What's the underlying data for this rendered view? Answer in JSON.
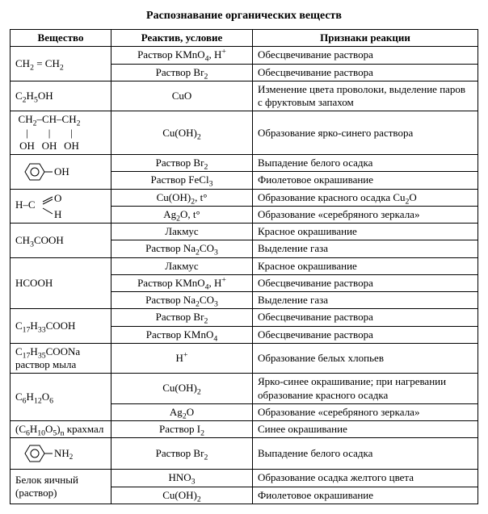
{
  "title": "Распознавание органических веществ",
  "headers": {
    "c1": "Вещество",
    "c2": "Реактив, условие",
    "c3": "Признаки реакции"
  },
  "rows": [
    {
      "sub": "CH₂ = CH₂",
      "span": 2,
      "cells": [
        {
          "reag": "Раствор KMnO₄, H⁺",
          "sign": "Обесцвечивание раствора"
        },
        {
          "reag": "Раствор Br₂",
          "sign": "Обесцвечивание раствора"
        }
      ]
    },
    {
      "sub": "C₂H₅OH",
      "span": 1,
      "cells": [
        {
          "reag": "CuO",
          "sign": "Изменение цвета проволоки, выделение паров с фруктовым запахом"
        }
      ]
    },
    {
      "sub": "glycerol",
      "span": 1,
      "cells": [
        {
          "reag": "Cu(OH)₂",
          "sign": "Образование ярко-синего раствора"
        }
      ]
    },
    {
      "sub": "phenol",
      "span": 2,
      "cells": [
        {
          "reag": "Раствор Br₂",
          "sign": "Выпадение белого осадка"
        },
        {
          "reag": "Раствор FeCl₃",
          "sign": "Фиолетовое окрашивание"
        }
      ]
    },
    {
      "sub": "formaldehyde",
      "span": 2,
      "cells": [
        {
          "reag": "Cu(OH)₂, t°",
          "sign": "Образование красного осадка Cu₂O"
        },
        {
          "reag": "Ag₂O, t°",
          "sign": "Образование «серебряного зеркала»"
        }
      ]
    },
    {
      "sub": "CH₃COOH",
      "span": 2,
      "cells": [
        {
          "reag": "Лакмус",
          "sign": "Красное окрашивание"
        },
        {
          "reag": "Раствор Na₂CO₃",
          "sign": "Выделение газа"
        }
      ]
    },
    {
      "sub": "HCOOH",
      "span": 3,
      "cells": [
        {
          "reag": "Лакмус",
          "sign": "Красное окрашивание"
        },
        {
          "reag": "Раствор KMnO₄, H⁺",
          "sign": "Обесцвечивание раствора"
        },
        {
          "reag": "Раствор Na₂CO₃",
          "sign": "Выделение газа"
        }
      ]
    },
    {
      "sub": "C₁₇H₃₃COOH",
      "span": 2,
      "cells": [
        {
          "reag": "Раствор Br₂",
          "sign": "Обесцвечивание раствора"
        },
        {
          "reag": "Раствор KMnO₄",
          "sign": "Обесцвечивание раствора"
        }
      ]
    },
    {
      "sub": "C₁₇H₃₅COONa раствор мыла",
      "span": 1,
      "cells": [
        {
          "reag": "H⁺",
          "sign": "Образование белых хлопьев"
        }
      ]
    },
    {
      "sub": "C₆H₁₂O₆",
      "span": 2,
      "cells": [
        {
          "reag": "Cu(OH)₂",
          "sign": "Ярко-синее окрашивание; при нагревании образование красного осадка"
        },
        {
          "reag": "Ag₂O",
          "sign": "Образование «серебряного зеркала»"
        }
      ]
    },
    {
      "sub": "(C₆H₁₀O₅)ₙ крахмал",
      "span": 1,
      "cells": [
        {
          "reag": "Раствор I₂",
          "sign": "Синее окрашивание"
        }
      ]
    },
    {
      "sub": "aniline",
      "span": 1,
      "cells": [
        {
          "reag": "Раствор Br₂",
          "sign": "Выпадение белого осадка"
        }
      ]
    },
    {
      "sub": "Белок яичный (раствор)",
      "span": 2,
      "cells": [
        {
          "reag": "HNO₃",
          "sign": "Образование осадка желтого цвета"
        },
        {
          "reag": "Cu(OH)₂",
          "sign": "Фиолетовое окрашивание"
        }
      ]
    }
  ],
  "formulas": {
    "glycerol": "<span style=\"display:inline-block;text-align:center;\">CH<sub>2</sub>&ndash;CH&ndash;CH<sub>2</sub><br><span style='display:inline-block;width:29px;text-align:center'>|</span><span style='display:inline-block;width:26px;text-align:center'>|</span><span style='display:inline-block;width:29px;text-align:center'>|</span><br><span style='display:inline-block;width:29px;text-align:center'>OH</span><span style='display:inline-block;width:26px;text-align:center'>OH</span><span style='display:inline-block;width:29px;text-align:center'>OH</span></span>",
    "phenol": "<svg class='formula-svg' width='70' height='32'><polygon points='12,16 18,6 30,6 36,16 30,26 18,26' fill='none' stroke='#000'/><circle cx='24' cy='16' r='5' fill='none' stroke='#000'/><line x1='36' y1='16' x2='46' y2='16' stroke='#000'/><text x='48' y='20' font-size='13' font-family='Times New Roman'>OH</text></svg>",
    "formaldehyde": "<svg class='formula-svg' width='80' height='34'><text x='0' y='20' font-size='13' font-family='Times New Roman'>H&#8211;C</text><line x1='34' y1='12' x2='46' y2='6' stroke='#000'/><line x1='34' y1='15' x2='46' y2='9' stroke='#000'/><text x='48' y='12' font-size='13' font-family='Times New Roman'>O</text><line x1='34' y1='20' x2='46' y2='27' stroke='#000'/><text x='48' y='32' font-size='13' font-family='Times New Roman'>H</text></svg>",
    "aniline": "<svg class='formula-svg' width='80' height='34'><polygon points='12,17 18,7 30,7 36,17 30,27 18,27' fill='none' stroke='#000'/><circle cx='24' cy='17' r='5' fill='none' stroke='#000'/><line x1='36' y1='17' x2='46' y2='17' stroke='#000'/><text x='48' y='21' font-size='13' font-family='Times New Roman'>NH<tspan baseline-shift='-3' font-size='9'>2</tspan></text></svg>"
  }
}
